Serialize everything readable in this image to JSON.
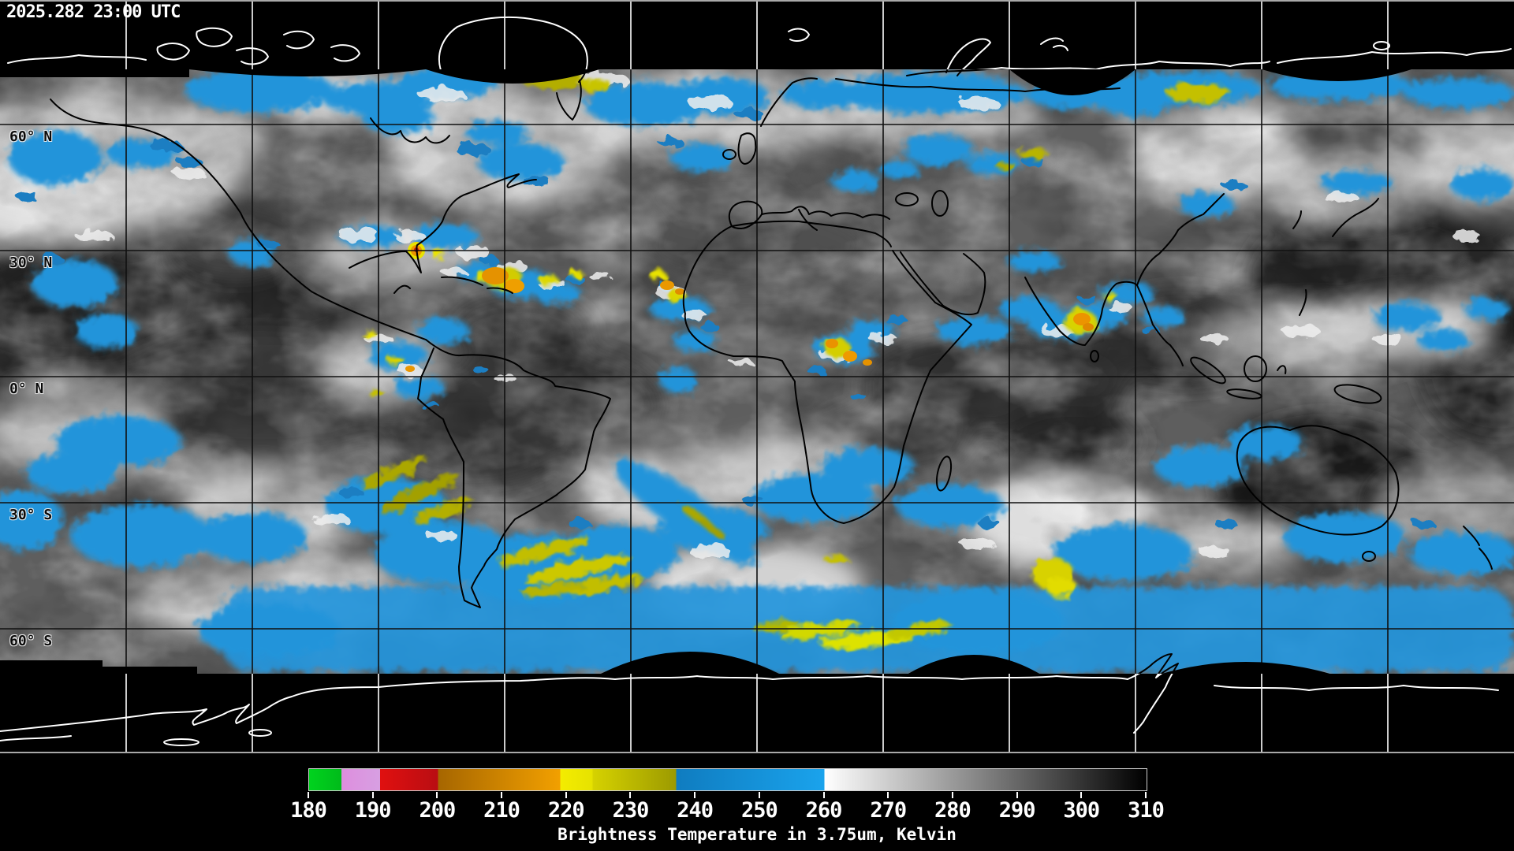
{
  "header": {
    "timestamp": "2025.282 23:00 UTC"
  },
  "map": {
    "latitude_labels": [
      {
        "label": "60° N"
      },
      {
        "label": "30° N"
      },
      {
        "label": "0° N"
      },
      {
        "label": "30° S"
      },
      {
        "label": "60° S"
      }
    ],
    "grid": {
      "lon_spacing_deg": 30,
      "lat_spacing_deg": 30
    },
    "colors": {
      "background": "#000000",
      "grid_on_imagery": "#101010",
      "grid_on_background": "#ffffff",
      "coastline_on_imagery": "#000000",
      "coastline_on_background": "#ffffff",
      "cold_cloud_blue": "#2394da",
      "cold_cloud_yellow": "#cfcb00",
      "cold_cloud_orange": "#ee9900",
      "cold_cloud_red": "#d01010",
      "cold_cloud_violet": "#dd8edd",
      "cold_cloud_green": "#00cc20"
    }
  },
  "colorbar": {
    "caption": "Brightness Temperature in 3.75um, Kelvin",
    "unit": "Kelvin",
    "min": 180,
    "max": 310,
    "tick_values": [
      180,
      190,
      200,
      210,
      220,
      230,
      240,
      250,
      260,
      270,
      280,
      290,
      300,
      310
    ],
    "segments": [
      {
        "from": 180,
        "to": 185,
        "color_start": "#00d31e",
        "color_end": "#00bb1a"
      },
      {
        "from": 185,
        "to": 191,
        "color_start": "#de8ede",
        "color_end": "#d79fe2"
      },
      {
        "from": 191,
        "to": 200,
        "color_start": "#e01010",
        "color_end": "#b90d12"
      },
      {
        "from": 200,
        "to": 219,
        "color_start": "#a66600",
        "color_end": "#f2a000"
      },
      {
        "from": 219,
        "to": 224,
        "color_start": "#f4ec00",
        "color_end": "#e6e200"
      },
      {
        "from": 224,
        "to": 237,
        "color_start": "#d6d200",
        "color_end": "#9c9a00"
      },
      {
        "from": 237,
        "to": 260,
        "color_start": "#0f7cc0",
        "color_end": "#1aa3ec"
      },
      {
        "from": 260,
        "to": 310,
        "color_start": "#ffffff",
        "color_end": "#000000"
      }
    ]
  }
}
